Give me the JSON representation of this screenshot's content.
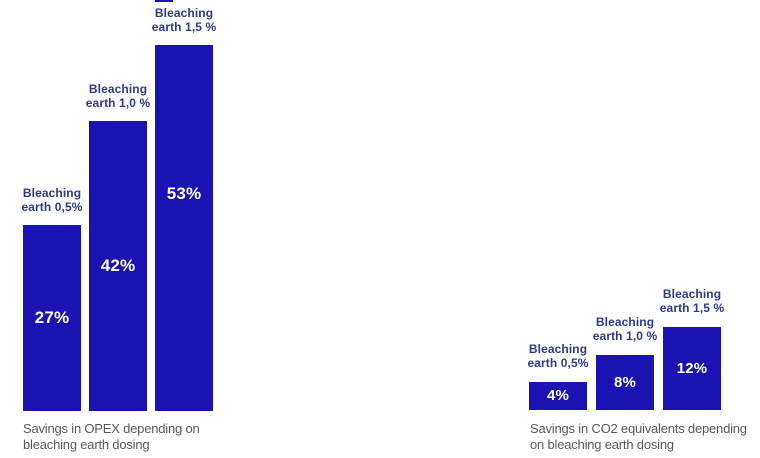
{
  "colors": {
    "background": "#ffffff",
    "bar_fill": "#1b12b4",
    "bar_top_label": "#2d3a8f",
    "value_label": "#ffffff",
    "caption": "#58595b"
  },
  "chart_data": [
    {
      "id": "opex-savings",
      "type": "bar",
      "title": "Savings in OPEX depending on bleaching earth dosing",
      "caption_lines": [
        "Savings in OPEX depending on",
        "bleaching earth dosing"
      ],
      "categories": [
        "Bleaching earth 0,5%",
        "Bleaching earth 1,0 %",
        "Bleaching earth 1,5 %"
      ],
      "bar_labels": [
        [
          "Bleaching",
          "earth 0,5%"
        ],
        [
          "Bleaching",
          "earth 1,0 %"
        ],
        [
          "Bleaching",
          "earth 1,5 %"
        ]
      ],
      "values": [
        27,
        42,
        53
      ],
      "value_labels": [
        "27%",
        "42%",
        "53%"
      ],
      "unit": "percent",
      "ylim": [
        0,
        60
      ],
      "grid": false,
      "legend": false,
      "value_label_position": "inside-bar"
    },
    {
      "id": "co2-savings",
      "type": "bar",
      "title": "Savings in CO2 equivalents depending on bleaching earth dosing",
      "caption_lines": [
        "Savings in CO2 equivalents depending",
        "on bleaching earth dosing"
      ],
      "categories": [
        "Bleaching earth 0,5%",
        "Bleaching earth 1,0 %",
        "Bleaching earth 1,5 %"
      ],
      "bar_labels": [
        [
          "Bleaching",
          "earth 0,5%"
        ],
        [
          "Bleaching",
          "earth 1,0 %"
        ],
        [
          "Bleaching",
          "earth 1,5 %"
        ]
      ],
      "values": [
        4,
        8,
        12
      ],
      "value_labels": [
        "4%",
        "8%",
        "12%"
      ],
      "unit": "percent",
      "ylim": [
        0,
        60
      ],
      "grid": false,
      "legend": false,
      "value_label_position": "inside-bar"
    }
  ]
}
